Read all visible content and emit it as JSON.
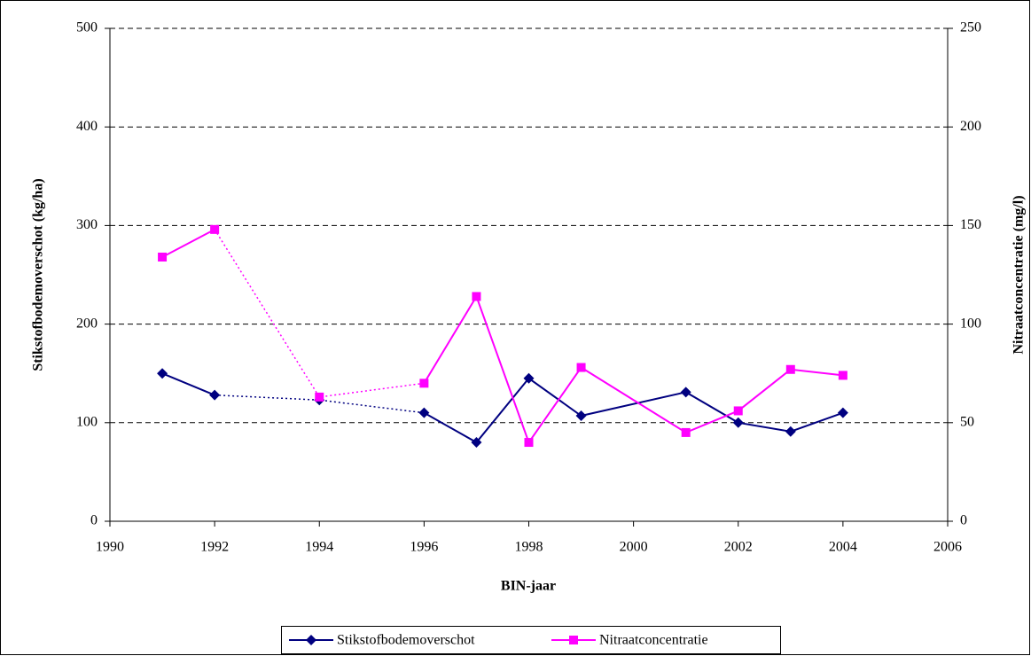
{
  "chart_data": {
    "type": "line",
    "x_label": "BIN-jaar",
    "y_label": "Stikstofbodemoverschot (kg/ha)",
    "y2_label": "Nitraatconcentratie (mg/l)",
    "x": [
      1991,
      1992,
      1994,
      1996,
      1997,
      1998,
      1999,
      2001,
      2002,
      2003,
      2004
    ],
    "xlim": [
      1990,
      2006
    ],
    "xticks": [
      1990,
      1992,
      1994,
      1996,
      1998,
      2000,
      2002,
      2004,
      2006
    ],
    "ylim": [
      0,
      500
    ],
    "yticks": [
      0,
      100,
      200,
      300,
      400,
      500
    ],
    "y2lim": [
      0,
      250
    ],
    "y2ticks": [
      0,
      50,
      100,
      150,
      200,
      250
    ],
    "grid": true,
    "legend": "bottom",
    "dotted_x_range": [
      1992,
      1996
    ],
    "series": [
      {
        "name": "Stikstofbodemoverschot",
        "color": "#000080",
        "marker": "diamond",
        "values": [
          150,
          128,
          123,
          110,
          80,
          145,
          107,
          131,
          100,
          91,
          110
        ]
      },
      {
        "name": "Nitraatconcentratie",
        "color": "#ff00ff",
        "marker": "square",
        "axis": "y2",
        "values": [
          134,
          148,
          63,
          70,
          114,
          40,
          78,
          45,
          56,
          77,
          74
        ]
      }
    ]
  }
}
